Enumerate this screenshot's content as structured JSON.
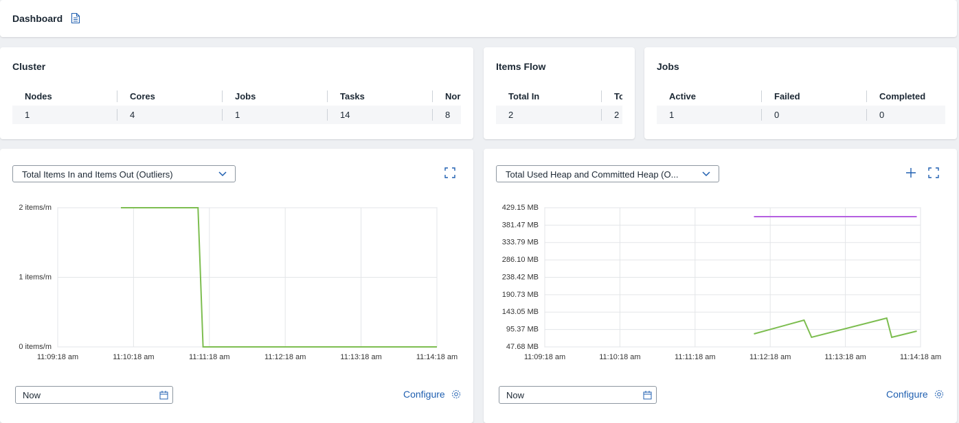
{
  "header": {
    "title": "Dashboard"
  },
  "cluster": {
    "title": "Cluster",
    "columns": [
      "Nodes",
      "Cores",
      "Jobs",
      "Tasks",
      "Nor"
    ],
    "values": [
      1,
      4,
      1,
      14,
      8
    ]
  },
  "items_flow": {
    "title": "Items Flow",
    "columns": [
      "Total In",
      "To"
    ],
    "values": [
      2,
      2
    ]
  },
  "jobs": {
    "title": "Jobs",
    "columns": [
      "Active",
      "Failed",
      "Completed"
    ],
    "values": [
      1,
      0,
      0
    ]
  },
  "panels": [
    {
      "selector": "Total Items In and Items Out (Outliers)",
      "time": "Now",
      "configure": "Configure"
    },
    {
      "selector": "Total Used Heap and Committed Heap (O...",
      "time": "Now",
      "configure": "Configure"
    }
  ],
  "chart_data": [
    {
      "type": "line",
      "x": [
        "11:10:08 am",
        "11:11:09 am",
        "11:11:13 am",
        "11:14:18 am"
      ],
      "series": [
        {
          "color": "#7cbd4f",
          "values": [
            2,
            2,
            0,
            0
          ]
        }
      ],
      "xlim": [
        "11:09:18 am",
        "11:14:18 am"
      ],
      "xticks": [
        "11:09:18 am",
        "11:10:18 am",
        "11:11:18 am",
        "11:12:18 am",
        "11:13:18 am",
        "11:14:18 am"
      ],
      "ylim": [
        0,
        2
      ],
      "yticks": [
        {
          "value": 0,
          "label": "0 items/m"
        },
        {
          "value": 1,
          "label": "1 items/m"
        },
        {
          "value": 2,
          "label": "2 items/m"
        }
      ],
      "grid": true
    },
    {
      "type": "line",
      "x": [
        "11:12:05 am",
        "11:12:45 am",
        "11:12:51 am",
        "11:13:51 am",
        "11:13:55 am",
        "11:14:15 am"
      ],
      "series": [
        {
          "color": "#b45ee0",
          "values": [
            404.7,
            404.7,
            404.7,
            404.7,
            404.7,
            404.7
          ]
        },
        {
          "color": "#7cbd4f",
          "values": [
            83.4,
            121.0,
            74.0,
            126.6,
            74.0,
            90.9
          ]
        }
      ],
      "xlim": [
        "11:09:18 am",
        "11:14:18 am"
      ],
      "xticks": [
        "11:09:18 am",
        "11:10:18 am",
        "11:11:18 am",
        "11:12:18 am",
        "11:13:18 am",
        "11:14:18 am"
      ],
      "ylim": [
        47.68,
        429.15
      ],
      "yticks": [
        {
          "value": 47.68,
          "label": "47.68 MB"
        },
        {
          "value": 95.37,
          "label": "95.37 MB"
        },
        {
          "value": 143.05,
          "label": "143.05 MB"
        },
        {
          "value": 190.73,
          "label": "190.73 MB"
        },
        {
          "value": 238.42,
          "label": "238.42 MB"
        },
        {
          "value": 286.1,
          "label": "286.10 MB"
        },
        {
          "value": 333.79,
          "label": "333.79 MB"
        },
        {
          "value": 381.47,
          "label": "381.47 MB"
        },
        {
          "value": 429.15,
          "label": "429.15 MB"
        }
      ],
      "grid": true
    }
  ]
}
